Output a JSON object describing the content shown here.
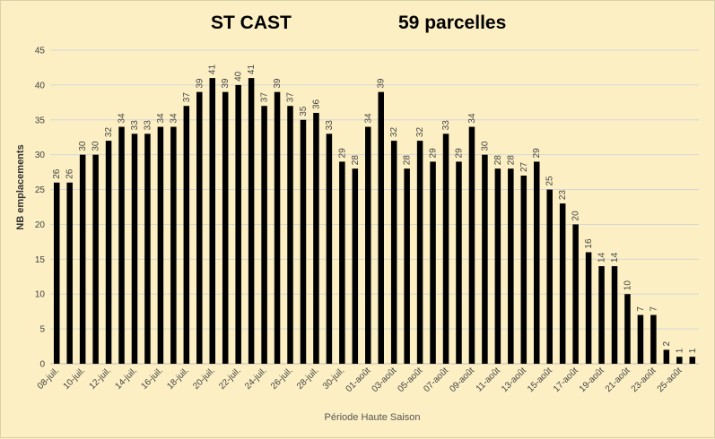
{
  "chart_data": {
    "type": "bar",
    "title": "ST CAST",
    "subtitle": "59 parcelles",
    "xlabel": "Période Haute Saison",
    "ylabel": "NB emplacements",
    "ylim": [
      0,
      45
    ],
    "yticks": [
      0,
      5,
      10,
      15,
      20,
      25,
      30,
      35,
      40,
      45
    ],
    "grid": true,
    "bar_color": "#000000",
    "background_color": "#fcefc3",
    "grid_color": "#d6d6d6",
    "categories": [
      "08-juil.",
      "09-juil.",
      "10-juil.",
      "11-juil.",
      "12-juil.",
      "13-juil.",
      "14-juil.",
      "15-juil.",
      "16-juil.",
      "17-juil.",
      "18-juil.",
      "19-juil.",
      "20-juil.",
      "21-juil.",
      "22-juil.",
      "23-juil.",
      "24-juil.",
      "25-juil.",
      "26-juil.",
      "27-juil.",
      "28-juil.",
      "29-juil.",
      "30-juil.",
      "31-juil.",
      "01-août",
      "02-août",
      "03-août",
      "04-août",
      "05-août",
      "06-août",
      "07-août",
      "08-août",
      "09-août",
      "10-août",
      "11-août",
      "12-août",
      "13-août",
      "14-août",
      "15-août",
      "16-août",
      "17-août",
      "18-août",
      "19-août",
      "20-août",
      "21-août",
      "22-août",
      "23-août",
      "24-août",
      "25-août",
      "26-août"
    ],
    "visible_category_labels": [
      "08-juil.",
      "10-juil.",
      "12-juil.",
      "14-juil.",
      "16-juil.",
      "18-juil.",
      "20-juil.",
      "22-juil.",
      "24-juil.",
      "26-juil.",
      "28-juil.",
      "30-juil.",
      "01-août",
      "03-août",
      "05-août",
      "07-août",
      "09-août",
      "11-août",
      "13-août",
      "15-août",
      "17-août",
      "19-août",
      "21-août",
      "23-août",
      "25-août"
    ],
    "values": [
      26,
      26,
      30,
      30,
      32,
      34,
      33,
      33,
      34,
      34,
      37,
      39,
      41,
      39,
      40,
      41,
      37,
      39,
      37,
      35,
      36,
      33,
      29,
      28,
      34,
      39,
      32,
      28,
      32,
      29,
      33,
      29,
      34,
      30,
      28,
      28,
      27,
      29,
      25,
      23,
      20,
      16,
      14,
      14,
      10,
      7,
      7,
      2,
      1,
      1
    ]
  }
}
